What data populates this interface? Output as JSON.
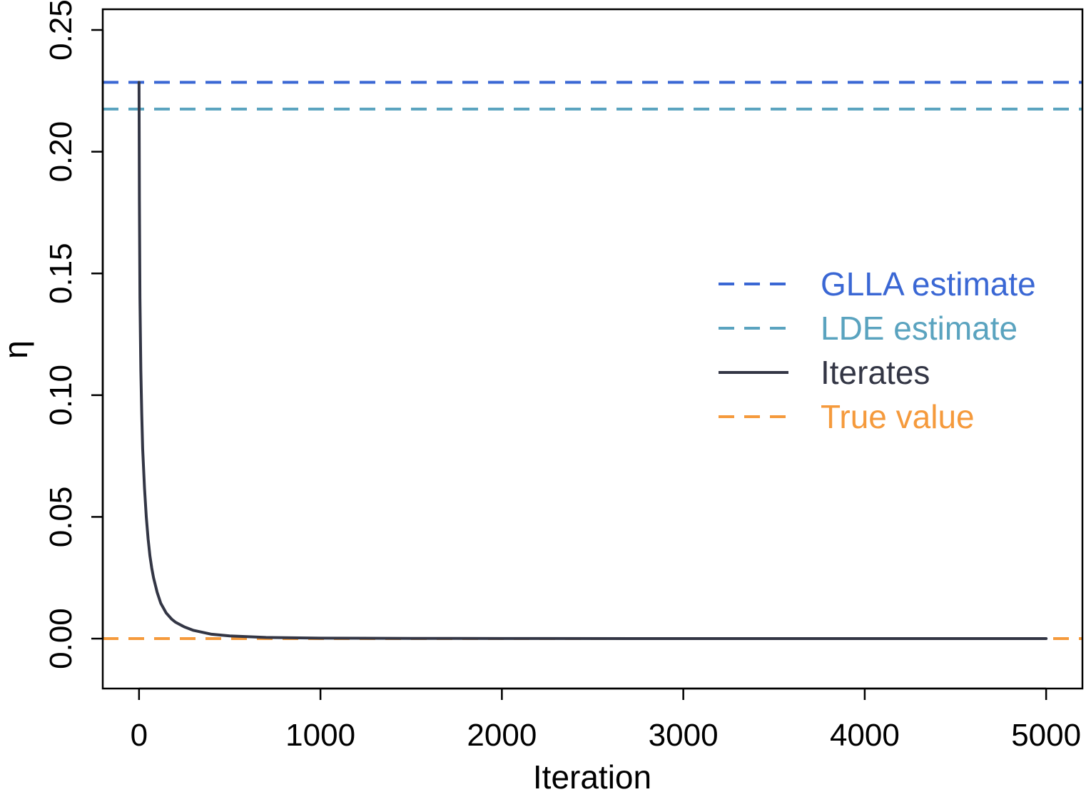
{
  "chart_data": {
    "type": "line",
    "xlabel": "Iteration",
    "ylabel": "η",
    "xlim": [
      -200,
      5200
    ],
    "ylim": [
      -0.0205,
      0.2585
    ],
    "x_ticks": [
      0,
      1000,
      2000,
      3000,
      4000,
      5000
    ],
    "x_tick_labels": [
      "0",
      "1000",
      "2000",
      "3000",
      "4000",
      "5000"
    ],
    "y_ticks": [
      0.0,
      0.05,
      0.1,
      0.15,
      0.2,
      0.25
    ],
    "y_tick_labels": [
      "0.00",
      "0.05",
      "0.10",
      "0.15",
      "0.20",
      "0.25"
    ],
    "grid": false,
    "legend_position": "right",
    "reference_lines": [
      {
        "name": "GLLA estimate",
        "y": 0.2285,
        "style": "dashed",
        "color": "#3a67d4"
      },
      {
        "name": "LDE estimate",
        "y": 0.2175,
        "style": "dashed",
        "color": "#5aa3bf"
      },
      {
        "name": "True value",
        "y": 0.0,
        "style": "dashed",
        "color": "#f59a3c"
      }
    ],
    "series": [
      {
        "name": "Iterates",
        "style": "solid",
        "color": "#333645",
        "x": [
          0,
          2,
          5,
          10,
          15,
          20,
          30,
          40,
          50,
          60,
          70,
          80,
          100,
          120,
          150,
          180,
          200,
          250,
          300,
          400,
          500,
          700,
          1000,
          1500,
          2000,
          3000,
          4000,
          5000
        ],
        "y": [
          0.2285,
          0.18,
          0.14,
          0.11,
          0.092,
          0.078,
          0.062,
          0.05,
          0.041,
          0.034,
          0.029,
          0.025,
          0.019,
          0.0145,
          0.0105,
          0.008,
          0.0068,
          0.0048,
          0.0034,
          0.0018,
          0.0011,
          0.0005,
          0.0002,
          0.0001,
          5e-05,
          0.0,
          0.0,
          0.0
        ]
      }
    ],
    "legend": [
      {
        "label": "GLLA estimate",
        "color": "#3a67d4",
        "style": "dashed"
      },
      {
        "label": "LDE estimate",
        "color": "#5aa3bf",
        "style": "dashed"
      },
      {
        "label": "Iterates",
        "color": "#333645",
        "style": "solid"
      },
      {
        "label": "True value",
        "color": "#f59a3c",
        "style": "dashed"
      }
    ]
  }
}
